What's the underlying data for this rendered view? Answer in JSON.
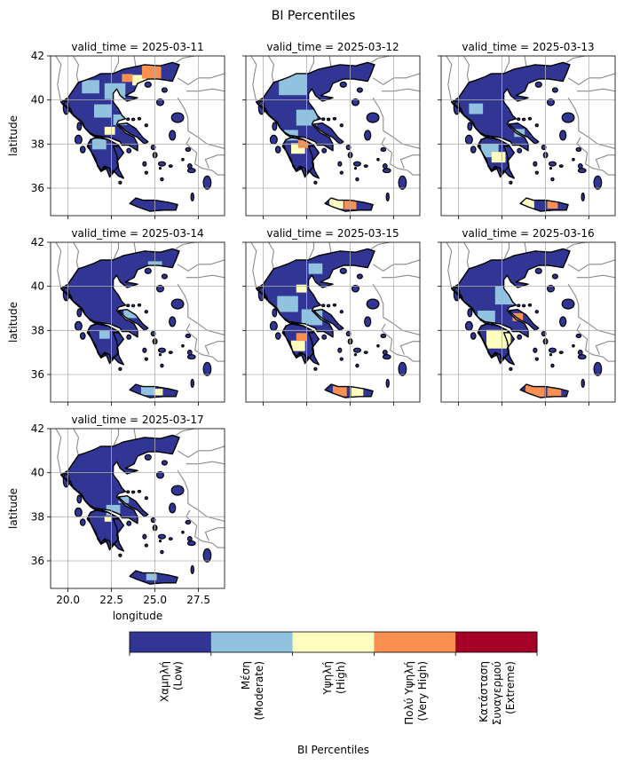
{
  "figure": {
    "title": "BI Percentiles"
  },
  "chart_data": {
    "type": "heatmap",
    "title": "BI Percentiles",
    "xlabel": "longitude",
    "ylabel": "latitude",
    "xlim": [
      19.0,
      29.0
    ],
    "ylim": [
      34.75,
      42.0
    ],
    "xticks": [
      20.0,
      22.5,
      25.0,
      27.5
    ],
    "xtick_labels": [
      "20.0",
      "22.5",
      "25.0",
      "27.5"
    ],
    "yticks": [
      36,
      38,
      40,
      42
    ],
    "ytick_labels": [
      "36",
      "38",
      "40",
      "42"
    ],
    "grid": true,
    "panels": [
      {
        "label": "valid_time = 2025-03-11",
        "hotspots": [
          {
            "lon": 24.8,
            "lat": 41.3,
            "level": 3,
            "r": 0.55
          },
          {
            "lon": 23.4,
            "lat": 41.0,
            "level": 3,
            "r": 0.3
          },
          {
            "lon": 24.1,
            "lat": 40.9,
            "level": 2,
            "r": 0.4
          },
          {
            "lon": 22.7,
            "lat": 40.4,
            "level": 1,
            "r": 0.6
          },
          {
            "lon": 21.3,
            "lat": 40.6,
            "level": 1,
            "r": 0.5
          },
          {
            "lon": 22.4,
            "lat": 38.6,
            "level": 2,
            "r": 0.3
          },
          {
            "lon": 22.0,
            "lat": 39.5,
            "level": 1,
            "r": 0.5
          },
          {
            "lon": 21.8,
            "lat": 38.0,
            "level": 1,
            "r": 0.4
          },
          {
            "lon": 23.0,
            "lat": 39.1,
            "level": 1,
            "r": 0.4
          }
        ]
      },
      {
        "label": "valid_time = 2025-03-12",
        "hotspots": [
          {
            "lon": 25.0,
            "lat": 35.25,
            "level": 3,
            "r": 0.35
          },
          {
            "lon": 24.2,
            "lat": 35.3,
            "level": 2,
            "r": 0.4
          },
          {
            "lon": 22.3,
            "lat": 38.0,
            "level": 3,
            "r": 0.3
          },
          {
            "lon": 22.0,
            "lat": 37.8,
            "level": 2,
            "r": 0.4
          },
          {
            "lon": 21.7,
            "lat": 40.7,
            "level": 1,
            "r": 0.8
          },
          {
            "lon": 22.5,
            "lat": 39.2,
            "level": 1,
            "r": 0.6
          },
          {
            "lon": 21.6,
            "lat": 38.4,
            "level": 1,
            "r": 0.4
          }
        ]
      },
      {
        "label": "valid_time = 2025-03-13",
        "hotspots": [
          {
            "lon": 25.4,
            "lat": 35.25,
            "level": 3,
            "r": 0.3
          },
          {
            "lon": 24.0,
            "lat": 35.3,
            "level": 2,
            "r": 0.35
          },
          {
            "lon": 22.3,
            "lat": 37.4,
            "level": 2,
            "r": 0.4
          },
          {
            "lon": 21.8,
            "lat": 37.7,
            "level": 1,
            "r": 0.5
          },
          {
            "lon": 21.0,
            "lat": 39.6,
            "level": 1,
            "r": 0.4
          },
          {
            "lon": 23.5,
            "lat": 38.5,
            "level": 1,
            "r": 0.3
          }
        ]
      },
      {
        "label": "valid_time = 2025-03-14",
        "hotspots": [
          {
            "lon": 25.2,
            "lat": 35.2,
            "level": 2,
            "r": 0.25
          },
          {
            "lon": 24.6,
            "lat": 35.3,
            "level": 1,
            "r": 0.4
          },
          {
            "lon": 22.1,
            "lat": 37.8,
            "level": 1,
            "r": 0.3
          },
          {
            "lon": 23.6,
            "lat": 38.8,
            "level": 1,
            "r": 0.4
          },
          {
            "lon": 25.0,
            "lat": 40.9,
            "level": 1,
            "r": 0.4
          }
        ]
      },
      {
        "label": "valid_time = 2025-03-15",
        "hotspots": [
          {
            "lon": 24.4,
            "lat": 35.25,
            "level": 3,
            "r": 0.4
          },
          {
            "lon": 25.4,
            "lat": 35.2,
            "level": 2,
            "r": 0.35
          },
          {
            "lon": 22.2,
            "lat": 37.7,
            "level": 3,
            "r": 0.3
          },
          {
            "lon": 22.0,
            "lat": 37.3,
            "level": 2,
            "r": 0.4
          },
          {
            "lon": 22.2,
            "lat": 39.9,
            "level": 2,
            "r": 0.3
          },
          {
            "lon": 21.4,
            "lat": 39.2,
            "level": 1,
            "r": 0.6
          },
          {
            "lon": 22.8,
            "lat": 38.6,
            "level": 1,
            "r": 0.6
          },
          {
            "lon": 23.0,
            "lat": 40.8,
            "level": 1,
            "r": 0.4
          }
        ]
      },
      {
        "label": "valid_time = 2025-03-16",
        "hotspots": [
          {
            "lon": 24.4,
            "lat": 35.3,
            "level": 3,
            "r": 0.55
          },
          {
            "lon": 25.5,
            "lat": 35.2,
            "level": 3,
            "r": 0.4
          },
          {
            "lon": 22.3,
            "lat": 37.6,
            "level": 2,
            "r": 0.7
          },
          {
            "lon": 23.4,
            "lat": 38.6,
            "level": 3,
            "r": 0.3
          },
          {
            "lon": 22.8,
            "lat": 39.6,
            "level": 1,
            "r": 0.7
          },
          {
            "lon": 21.6,
            "lat": 38.6,
            "level": 1,
            "r": 0.5
          },
          {
            "lon": 26.3,
            "lat": 39.2,
            "level": 3,
            "r": 0.25
          }
        ]
      },
      {
        "label": "valid_time = 2025-03-17",
        "hotspots": [
          {
            "lon": 24.8,
            "lat": 35.3,
            "level": 1,
            "r": 0.3
          },
          {
            "lon": 22.6,
            "lat": 38.3,
            "level": 1,
            "r": 0.4
          },
          {
            "lon": 23.2,
            "lat": 38.8,
            "level": 1,
            "r": 0.3
          },
          {
            "lon": 22.3,
            "lat": 37.9,
            "level": 2,
            "r": 0.2
          }
        ]
      }
    ],
    "colorbar": {
      "label": "BI Percentiles",
      "categories": [
        {
          "lines": [
            "Χαμηλή",
            "(Low)"
          ],
          "color": "#313695"
        },
        {
          "lines": [
            "Μέση",
            "(Moderate)"
          ],
          "color": "#91c3e0"
        },
        {
          "lines": [
            "Υψηλή",
            "(High)"
          ],
          "color": "#fefec0"
        },
        {
          "lines": [
            "Πολύ Υψηλή",
            "(Very High)"
          ],
          "color": "#fa8f52"
        },
        {
          "lines": [
            "Κατάσταση",
            "Συναγερμού",
            "(Extreme)"
          ],
          "color": "#a50026"
        }
      ]
    }
  }
}
